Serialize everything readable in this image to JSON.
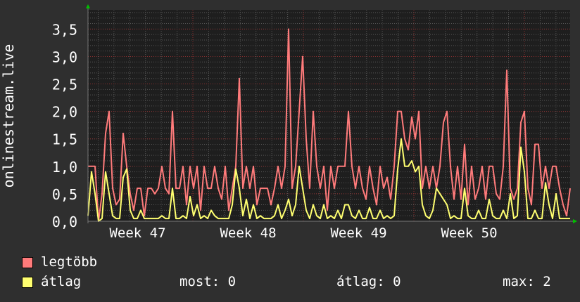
{
  "chart_data": {
    "type": "line",
    "ylabel": "onlinestream.live",
    "ylim": [
      0,
      3.85
    ],
    "yticks": [
      "0,0",
      "0,5",
      "1,0",
      "1,5",
      "2,0",
      "2,5",
      "3,0",
      "3,5"
    ],
    "ytick_values": [
      0,
      0.5,
      1,
      1.5,
      2,
      2.5,
      3,
      3.5
    ],
    "xticks": [
      "Week 47",
      "Week 48",
      "Week 49",
      "Week 50"
    ],
    "grid": true,
    "colors": {
      "max": "#ff7b7b",
      "avg": "#ffff70",
      "background": "#2f2f2f",
      "plot": "#1e1e1e",
      "major_grid": "#8a2f2f",
      "minor_grid": "#555555",
      "arrow": "#00c000"
    },
    "series": [
      {
        "name": "legtöbb",
        "values": [
          1.0,
          1.0,
          1.0,
          0,
          0.5,
          1.6,
          2.0,
          0.6,
          0.3,
          0.4,
          1.6,
          1.0,
          0.5,
          0.2,
          0.6,
          0.6,
          0.1,
          0.6,
          0.6,
          0.5,
          0.6,
          1.0,
          0.6,
          0.5,
          2.0,
          0.6,
          0.6,
          1.0,
          0.3,
          1.0,
          0.6,
          1.0,
          0.2,
          1.0,
          0.6,
          0.6,
          1.0,
          0.6,
          0.4,
          1.0,
          0.2,
          0.6,
          1.0,
          2.6,
          0.6,
          1.0,
          0.6,
          1.0,
          0.3,
          0.6,
          0.6,
          0.6,
          0.3,
          0.6,
          1.0,
          0.6,
          1.0,
          3.5,
          0.6,
          1.0,
          2.0,
          3.0,
          1.5,
          0.6,
          2.0,
          1.0,
          0.6,
          1.0,
          0.2,
          1.0,
          0.6,
          1.0,
          1.0,
          1.0,
          2.0,
          1.0,
          0.6,
          1.0,
          0.6,
          0.4,
          1.0,
          0.6,
          0.3,
          1.0,
          0.6,
          0.8,
          0.4,
          1.0,
          2.0,
          2.0,
          1.5,
          1.3,
          1.9,
          1.5,
          2.0,
          0.6,
          1.0,
          0.6,
          1.0,
          0.6,
          1.0,
          1.8,
          2.0,
          1.0,
          0.4,
          1.0,
          0.4,
          1.4,
          0.3,
          1.0,
          0.4,
          0.6,
          1.0,
          0.4,
          1.0,
          1.0,
          0.5,
          0.4,
          1.0,
          2.75,
          0.6,
          0.4,
          0.6,
          1.8,
          2.0,
          0.6,
          0.3,
          1.4,
          1.4,
          0.6,
          1.0,
          0.6,
          1.0,
          1.0,
          0.6,
          0.3,
          0.1,
          0.6
        ]
      },
      {
        "name": "átlag",
        "values": [
          0.1,
          0.9,
          0.5,
          0,
          0.05,
          0.9,
          0.5,
          0.1,
          0.05,
          0.05,
          0.8,
          0.95,
          0.2,
          0.05,
          0.05,
          0.2,
          0.05,
          0.05,
          0.05,
          0.05,
          0.05,
          0.1,
          0.05,
          0.05,
          0.6,
          0.05,
          0.05,
          0.1,
          0.05,
          0.45,
          0.1,
          0.3,
          0.05,
          0.1,
          0.05,
          0.2,
          0.1,
          0.05,
          0.05,
          0.05,
          0.05,
          0.3,
          0.95,
          0.6,
          0.1,
          0.4,
          0.05,
          0.3,
          0.05,
          0.1,
          0.05,
          0.05,
          0.05,
          0.1,
          0.3,
          0.05,
          0.2,
          0.4,
          0.1,
          0.3,
          1.0,
          0.6,
          0.2,
          0.05,
          0.3,
          0.1,
          0.05,
          0.3,
          0.05,
          0.1,
          0.05,
          0.2,
          0.05,
          0.3,
          0.3,
          0.1,
          0.05,
          0.2,
          0.05,
          0.05,
          0.25,
          0.05,
          0.05,
          0.2,
          0.05,
          0.1,
          0.05,
          0.1,
          0.95,
          1.5,
          1.0,
          1.0,
          1.1,
          0.9,
          1.0,
          0.3,
          0.1,
          0.05,
          0.2,
          0.6,
          0.5,
          0.4,
          0.3,
          0.05,
          0.1,
          0.05,
          0.05,
          0.6,
          0.1,
          0.05,
          0.05,
          0.2,
          0.05,
          0.05,
          0.4,
          0.1,
          0.05,
          0.05,
          0.2,
          0.05,
          0.5,
          0.05,
          0.1,
          1.35,
          0.9,
          0.05,
          0.05,
          0.2,
          0.05,
          0.05,
          0.7,
          0.3,
          0.05,
          0.5,
          0.05,
          0.05,
          0.05,
          0.05
        ]
      }
    ]
  },
  "legend": {
    "max_label": "legtöbb",
    "avg_label": "átlag",
    "current": "most: 0",
    "average": "átlag: 0",
    "maximum": "max: 2"
  }
}
